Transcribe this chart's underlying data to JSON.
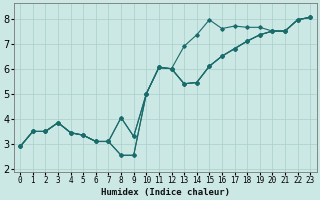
{
  "xlabel": "Humidex (Indice chaleur)",
  "bg_color": "#cce8e4",
  "grid_color": "#aacfcb",
  "line_color": "#1a6b6b",
  "xlim": [
    -0.5,
    23.5
  ],
  "ylim": [
    1.9,
    8.6
  ],
  "yticks": [
    2,
    3,
    4,
    5,
    6,
    7,
    8
  ],
  "xticks": [
    0,
    1,
    2,
    3,
    4,
    5,
    6,
    7,
    8,
    9,
    10,
    11,
    12,
    13,
    14,
    15,
    16,
    17,
    18,
    19,
    20,
    21,
    22,
    23
  ],
  "lines": [
    [
      [
        0,
        2.9
      ],
      [
        1,
        3.5
      ],
      [
        2,
        3.5
      ],
      [
        3,
        3.85
      ],
      [
        4,
        3.45
      ],
      [
        5,
        3.35
      ],
      [
        6,
        3.1
      ],
      [
        7,
        3.1
      ],
      [
        8,
        4.05
      ],
      [
        9,
        3.3
      ],
      [
        10,
        5.0
      ],
      [
        11,
        6.05
      ],
      [
        12,
        6.0
      ],
      [
        13,
        6.9
      ],
      [
        14,
        7.35
      ],
      [
        15,
        7.95
      ],
      [
        16,
        7.6
      ],
      [
        17,
        7.7
      ],
      [
        18,
        7.65
      ],
      [
        19,
        7.65
      ],
      [
        20,
        7.5
      ],
      [
        21,
        7.5
      ],
      [
        22,
        7.95
      ],
      [
        23,
        8.05
      ]
    ],
    [
      [
        0,
        2.9
      ],
      [
        1,
        3.5
      ],
      [
        2,
        3.5
      ],
      [
        3,
        3.85
      ],
      [
        4,
        3.45
      ],
      [
        5,
        3.35
      ],
      [
        6,
        3.1
      ],
      [
        7,
        3.1
      ],
      [
        8,
        4.05
      ],
      [
        9,
        3.3
      ],
      [
        10,
        5.0
      ],
      [
        11,
        6.05
      ],
      [
        12,
        6.0
      ],
      [
        13,
        5.4
      ],
      [
        14,
        5.45
      ],
      [
        15,
        6.1
      ],
      [
        16,
        6.5
      ],
      [
        17,
        6.8
      ],
      [
        18,
        7.1
      ],
      [
        19,
        7.35
      ],
      [
        20,
        7.5
      ],
      [
        21,
        7.5
      ],
      [
        22,
        7.95
      ],
      [
        23,
        8.05
      ]
    ],
    [
      [
        0,
        2.9
      ],
      [
        1,
        3.5
      ],
      [
        2,
        3.5
      ],
      [
        3,
        3.85
      ],
      [
        4,
        3.45
      ],
      [
        5,
        3.35
      ],
      [
        6,
        3.1
      ],
      [
        7,
        3.1
      ],
      [
        8,
        2.55
      ],
      [
        9,
        2.55
      ],
      [
        10,
        5.0
      ],
      [
        11,
        6.05
      ],
      [
        12,
        6.0
      ],
      [
        13,
        5.4
      ],
      [
        14,
        5.45
      ],
      [
        15,
        6.1
      ],
      [
        16,
        6.5
      ],
      [
        17,
        6.8
      ],
      [
        18,
        7.1
      ],
      [
        19,
        7.35
      ],
      [
        20,
        7.5
      ],
      [
        21,
        7.5
      ],
      [
        22,
        7.95
      ],
      [
        23,
        8.05
      ]
    ],
    [
      [
        0,
        2.9
      ],
      [
        1,
        3.5
      ],
      [
        2,
        3.5
      ],
      [
        3,
        3.85
      ],
      [
        4,
        3.45
      ],
      [
        5,
        3.35
      ],
      [
        6,
        3.1
      ],
      [
        7,
        3.1
      ],
      [
        8,
        2.55
      ],
      [
        9,
        2.55
      ],
      [
        10,
        5.0
      ],
      [
        11,
        6.05
      ],
      [
        12,
        6.0
      ],
      [
        13,
        5.4
      ],
      [
        14,
        5.45
      ],
      [
        15,
        6.1
      ],
      [
        16,
        6.5
      ],
      [
        17,
        6.8
      ],
      [
        18,
        7.1
      ],
      [
        19,
        7.35
      ],
      [
        20,
        7.5
      ],
      [
        21,
        7.5
      ],
      [
        22,
        7.95
      ],
      [
        23,
        8.05
      ]
    ]
  ]
}
